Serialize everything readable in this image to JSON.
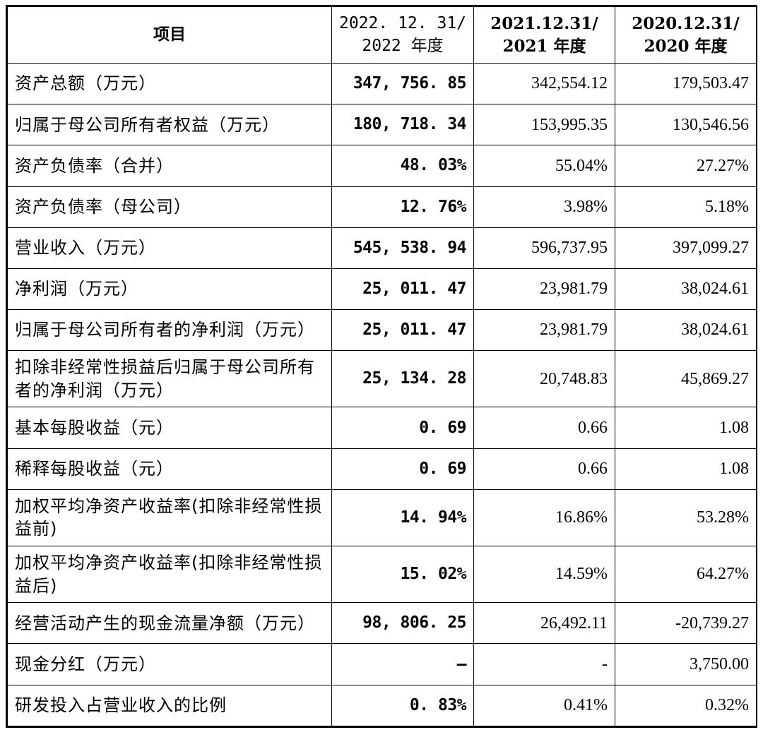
{
  "header": {
    "item": "项目",
    "col2022_line1": "2022. 12. 31/",
    "col2022_line2": "2022 年度",
    "col2021_line1": "2021.12.31/",
    "col2021_line2": "2021 年度",
    "col2020_line1": "2020.12.31/",
    "col2020_line2": "2020 年度"
  },
  "rows": [
    {
      "label": "资产总额（万元）",
      "v2022": "347, 756. 85",
      "v2021": "342,554.12",
      "v2020": "179,503.47"
    },
    {
      "label": "归属于母公司所有者权益（万元）",
      "v2022": "180, 718. 34",
      "v2021": "153,995.35",
      "v2020": "130,546.56"
    },
    {
      "label": "资产负债率（合并）",
      "v2022": "48. 03%",
      "v2021": "55.04%",
      "v2020": "27.27%"
    },
    {
      "label": "资产负债率（母公司）",
      "v2022": "12. 76%",
      "v2021": "3.98%",
      "v2020": "5.18%"
    },
    {
      "label": "营业收入（万元）",
      "v2022": "545, 538. 94",
      "v2021": "596,737.95",
      "v2020": "397,099.27"
    },
    {
      "label": "净利润（万元）",
      "v2022": "25, 011. 47",
      "v2021": "23,981.79",
      "v2020": "38,024.61"
    },
    {
      "label": "归属于母公司所有者的净利润（万元）",
      "v2022": "25, 011. 47",
      "v2021": "23,981.79",
      "v2020": "38,024.61"
    },
    {
      "label": "扣除非经常性损益后归属于母公司所有者的净利润（万元）",
      "v2022": "25, 134. 28",
      "v2021": "20,748.83",
      "v2020": "45,869.27"
    },
    {
      "label": "基本每股收益（元）",
      "v2022": "0. 69",
      "v2021": "0.66",
      "v2020": "1.08"
    },
    {
      "label": "稀释每股收益（元）",
      "v2022": "0. 69",
      "v2021": "0.66",
      "v2020": "1.08"
    },
    {
      "label": "加权平均净资产收益率(扣除非经常性损益前)",
      "v2022": "14. 94%",
      "v2021": "16.86%",
      "v2020": "53.28%"
    },
    {
      "label": "加权平均净资产收益率(扣除非经常性损益后)",
      "v2022": "15. 02%",
      "v2021": "14.59%",
      "v2020": "64.27%"
    },
    {
      "label": "经营活动产生的现金流量净额（万元）",
      "v2022": "98, 806. 25",
      "v2021": "26,492.11",
      "v2020": "-20,739.27"
    },
    {
      "label": "现金分红（万元）",
      "v2022": "–",
      "v2021": "-",
      "v2020": "3,750.00"
    },
    {
      "label": "研发投入占营业收入的比例",
      "v2022": "0. 83%",
      "v2021": "0.41%",
      "v2020": "0.32%"
    }
  ]
}
